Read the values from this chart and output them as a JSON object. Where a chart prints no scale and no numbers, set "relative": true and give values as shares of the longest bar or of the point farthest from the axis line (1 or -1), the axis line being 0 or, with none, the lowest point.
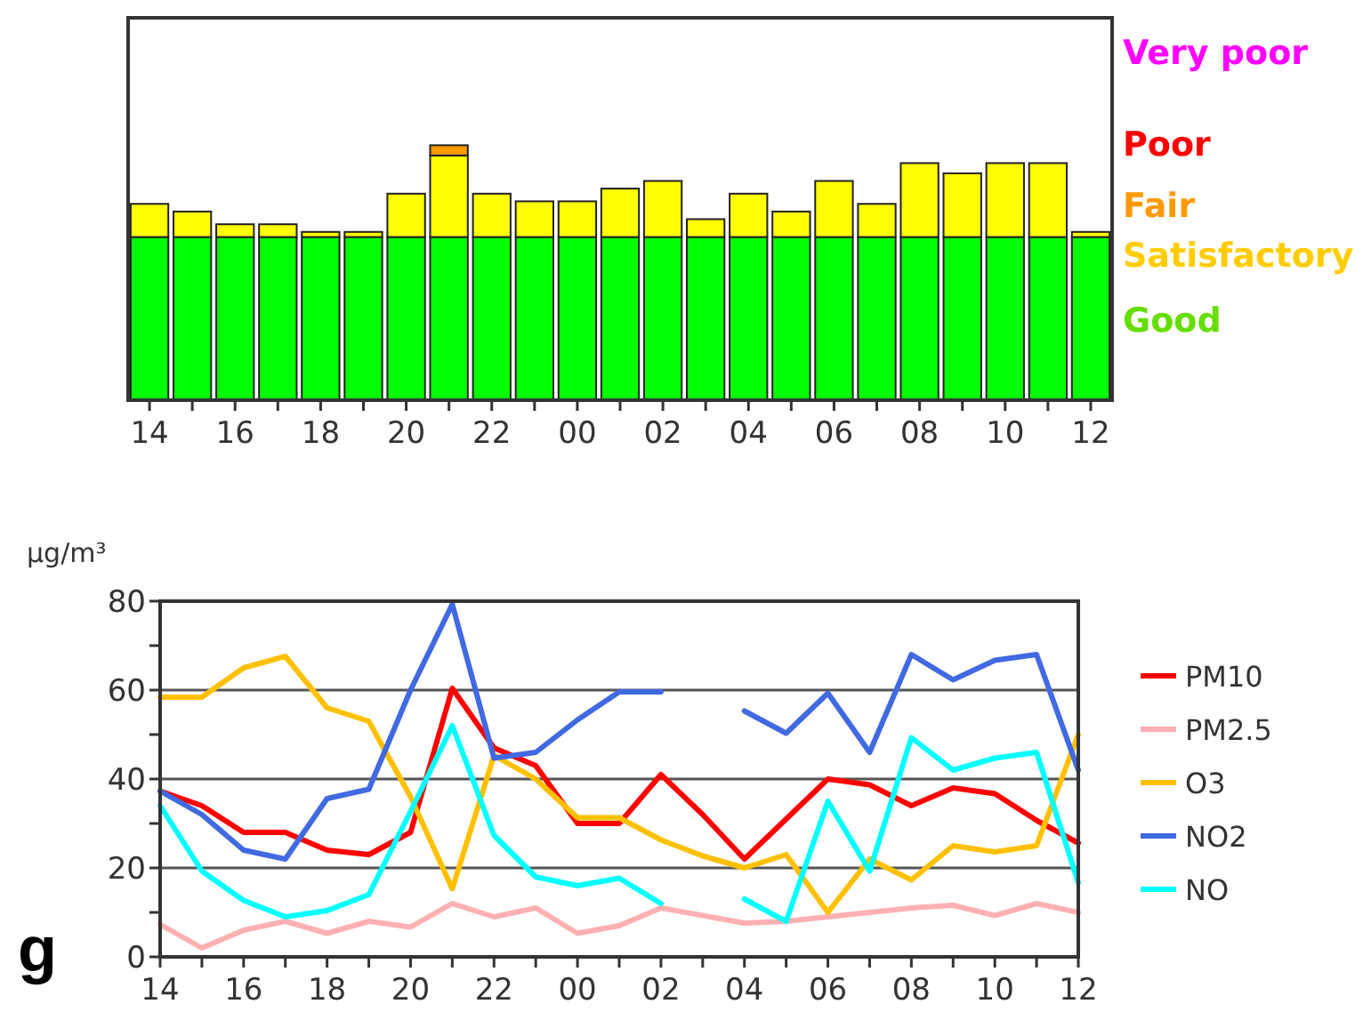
{
  "chart_data": [
    {
      "type": "bar",
      "stacked": true,
      "relative": true,
      "categories": [
        "14",
        null,
        "16",
        null,
        "18",
        null,
        "20",
        null,
        "22",
        null,
        "00",
        null,
        "02",
        null,
        "04",
        null,
        "06",
        null,
        "08",
        null,
        "10",
        null,
        "12"
      ],
      "series": [
        {
          "color": "#00ff00",
          "values": [
            0.64,
            0.64,
            0.64,
            0.64,
            0.64,
            0.64,
            0.64,
            0.64,
            0.64,
            0.64,
            0.64,
            0.64,
            0.64,
            0.64,
            0.64,
            0.64,
            0.64,
            0.64,
            0.64,
            0.64,
            0.64,
            0.64,
            0.64
          ]
        },
        {
          "color": "#ffff00",
          "values": [
            0.13,
            0.1,
            0.05,
            0.05,
            0.02,
            0.02,
            0.17,
            0.32,
            0.17,
            0.14,
            0.14,
            0.19,
            0.22,
            0.07,
            0.17,
            0.1,
            0.22,
            0.13,
            0.29,
            0.25,
            0.29,
            0.29,
            0.02
          ]
        },
        {
          "color": "#ff9900",
          "values": [
            0,
            0,
            0,
            0,
            0,
            0,
            0,
            0.04,
            0,
            0,
            0,
            0,
            0,
            0,
            0,
            0,
            0,
            0,
            0,
            0,
            0,
            0,
            0
          ]
        }
      ],
      "annotations": [
        "Very poor",
        "Poor",
        "Fair",
        "Satisfactory",
        "Good"
      ]
    },
    {
      "type": "line",
      "ylabel": "µg/m³",
      "categories": [
        "14",
        null,
        "16",
        null,
        "18",
        null,
        "20",
        null,
        "22",
        null,
        "00",
        null,
        "02",
        null,
        "04",
        null,
        "06",
        null,
        "08",
        null,
        "10",
        null,
        "12"
      ],
      "ylim": [
        0,
        80
      ],
      "yticks": [
        0,
        {
          "value": 10,
          "label": null
        },
        20,
        {
          "value": 30,
          "label": null
        },
        40,
        {
          "value": 50,
          "label": null
        },
        60,
        {
          "value": 70,
          "label": null
        },
        80
      ],
      "grid": "y",
      "legend": "right",
      "marker": "none",
      "line_style": "solid",
      "series": [
        {
          "name": "PM10",
          "color": "#ff0000",
          "values": [
            37.3,
            34,
            28,
            28,
            24,
            23,
            28,
            60.4,
            47,
            43,
            30,
            30,
            41,
            32,
            22,
            31,
            40,
            38.7,
            34,
            38,
            36.7,
            30.7,
            25.6
          ]
        },
        {
          "name": "PM2.5",
          "color": "#ffb0b0",
          "values": [
            7.3,
            2,
            6,
            8,
            5.3,
            8,
            6.7,
            12,
            9,
            11,
            5.3,
            7,
            11,
            9.3,
            7.6,
            8,
            9,
            10,
            11,
            11.6,
            9.3,
            12,
            10
          ]
        },
        {
          "name": "O3",
          "color": "#ffc000",
          "values": [
            58.4,
            58.4,
            65,
            67.6,
            56,
            53,
            36,
            15.3,
            45.3,
            40,
            31.3,
            31.3,
            26.3,
            22.7,
            20,
            23,
            10,
            22,
            17.3,
            25,
            23.6,
            25,
            50
          ]
        },
        {
          "name": "NO2",
          "color": "#4169e1",
          "values": [
            37.3,
            32,
            24,
            22,
            35.6,
            37.7,
            60,
            79.3,
            44.7,
            46,
            53.3,
            59.6,
            59.6,
            null,
            55.3,
            50.3,
            59.3,
            46,
            68,
            62.3,
            66.7,
            68,
            42
          ]
        },
        {
          "name": "NO",
          "color": "#00ffff",
          "values": [
            34,
            19.3,
            12.7,
            9,
            10.4,
            14,
            32.7,
            52,
            27.3,
            18,
            16,
            17.7,
            12,
            null,
            13,
            8,
            35,
            19.3,
            49.3,
            42,
            44.7,
            46,
            16.7
          ]
        }
      ],
      "annotations": [
        "g"
      ]
    }
  ]
}
